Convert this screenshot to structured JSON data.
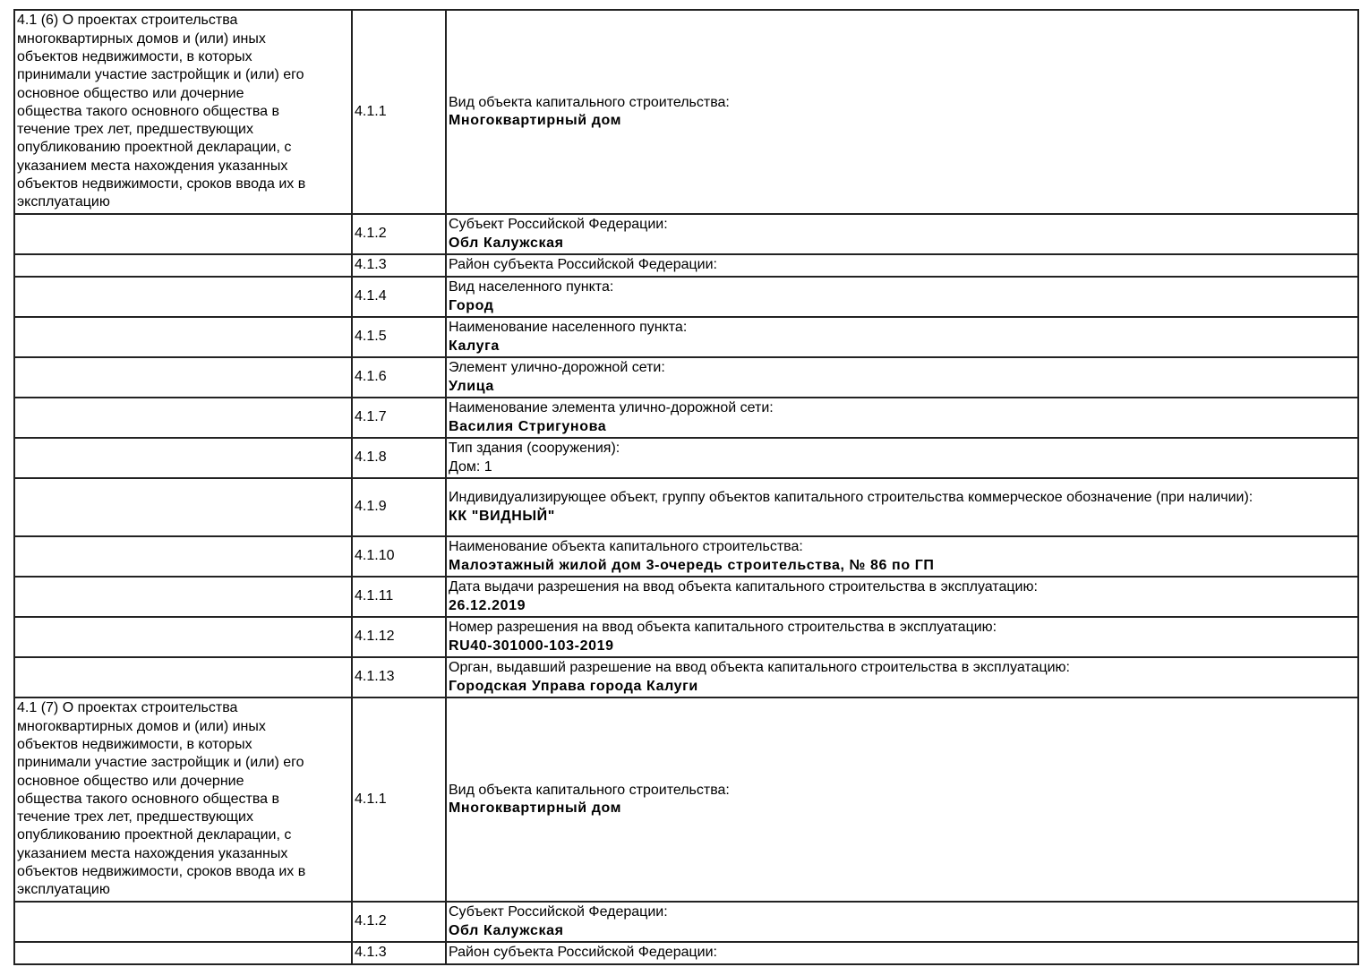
{
  "rows": [
    {
      "section": "4.1 (6) О проектах строительства\nмногоквартирных домов и (или) иных\nобъектов недвижимости, в которых\nпринимали участие застройщик и (или) его\nосновное общество или дочерние\nобщества такого основного общества в\nтечение трех лет, предшествующих\nопубликованию проектной декларации, с\nуказанием места нахождения указанных\nобъектов недвижимости, сроков ввода их в\nэксплуатацию",
      "code": "4.1.1",
      "label": "Вид объекта капитального строительства:",
      "value": "Многоквартирный дом",
      "value_bold": true
    },
    {
      "section": "",
      "code": "4.1.2",
      "label": "Субъект Российской Федерации:",
      "value": "Обл Калужская",
      "value_bold": true
    },
    {
      "section": "",
      "code": "4.1.3",
      "label": "Район субъекта Российской Федерации:",
      "value": "",
      "value_bold": true
    },
    {
      "section": "",
      "code": "4.1.4",
      "label": "Вид населенного пункта:",
      "value": "Город",
      "value_bold": true
    },
    {
      "section": "",
      "code": "4.1.5",
      "label": "Наименование населенного пункта:",
      "value": "Калуга",
      "value_bold": true
    },
    {
      "section": "",
      "code": "4.1.6",
      "label": "Элемент улично-дорожной сети:",
      "value": "Улица",
      "value_bold": true
    },
    {
      "section": "",
      "code": "4.1.7",
      "label": "Наименование элемента улично-дорожной сети:",
      "value": "Василия Стригунова",
      "value_bold": true
    },
    {
      "section": "",
      "code": "4.1.8",
      "label": "Тип здания (сооружения):",
      "value": "Дом: 1",
      "value_bold": false
    },
    {
      "section": "",
      "code": "4.1.9",
      "label": "Индивидуализирующее объект, группу объектов капитального строительства коммерческое обозначение (при наличии):",
      "value": "КК \"ВИДНЫЙ\"",
      "value_bold": true
    },
    {
      "section": "",
      "code": "4.1.10",
      "label": "Наименование объекта капитального строительства:",
      "value": "Малоэтажный жилой дом 3-очередь строительства, № 86 по ГП",
      "value_bold": true
    },
    {
      "section": "",
      "code": "4.1.11",
      "label": "Дата выдачи разрешения на ввод объекта капитального строительства в эксплуатацию:",
      "value": "26.12.2019",
      "value_bold": true
    },
    {
      "section": "",
      "code": "4.1.12",
      "label": "Номер разрешения на ввод объекта капитального строительства в эксплуатацию:",
      "value": "RU40-301000-103-2019",
      "value_bold": true
    },
    {
      "section": "",
      "code": "4.1.13",
      "label": "Орган, выдавший разрешение на ввод объекта капитального строительства в эксплуатацию:",
      "value": "Городская Управа города Калуги",
      "value_bold": true
    },
    {
      "section": "4.1 (7) О проектах строительства\nмногоквартирных домов и (или) иных\nобъектов недвижимости, в которых\nпринимали участие застройщик и (или) его\nосновное общество или дочерние\nобщества такого основного общества в\nтечение трех лет, предшествующих\nопубликованию проектной декларации, с\nуказанием места нахождения указанных\nобъектов недвижимости, сроков ввода их в\nэксплуатацию",
      "code": "4.1.1",
      "label": "Вид объекта капитального строительства:",
      "value": "Многоквартирный дом",
      "value_bold": true
    },
    {
      "section": "",
      "code": "4.1.2",
      "label": "Субъект Российской Федерации:",
      "value": "Обл Калужская",
      "value_bold": true
    },
    {
      "section": "",
      "code": "4.1.3",
      "label": "Район субъекта Российской Федерации:",
      "value": "",
      "value_bold": true
    }
  ]
}
